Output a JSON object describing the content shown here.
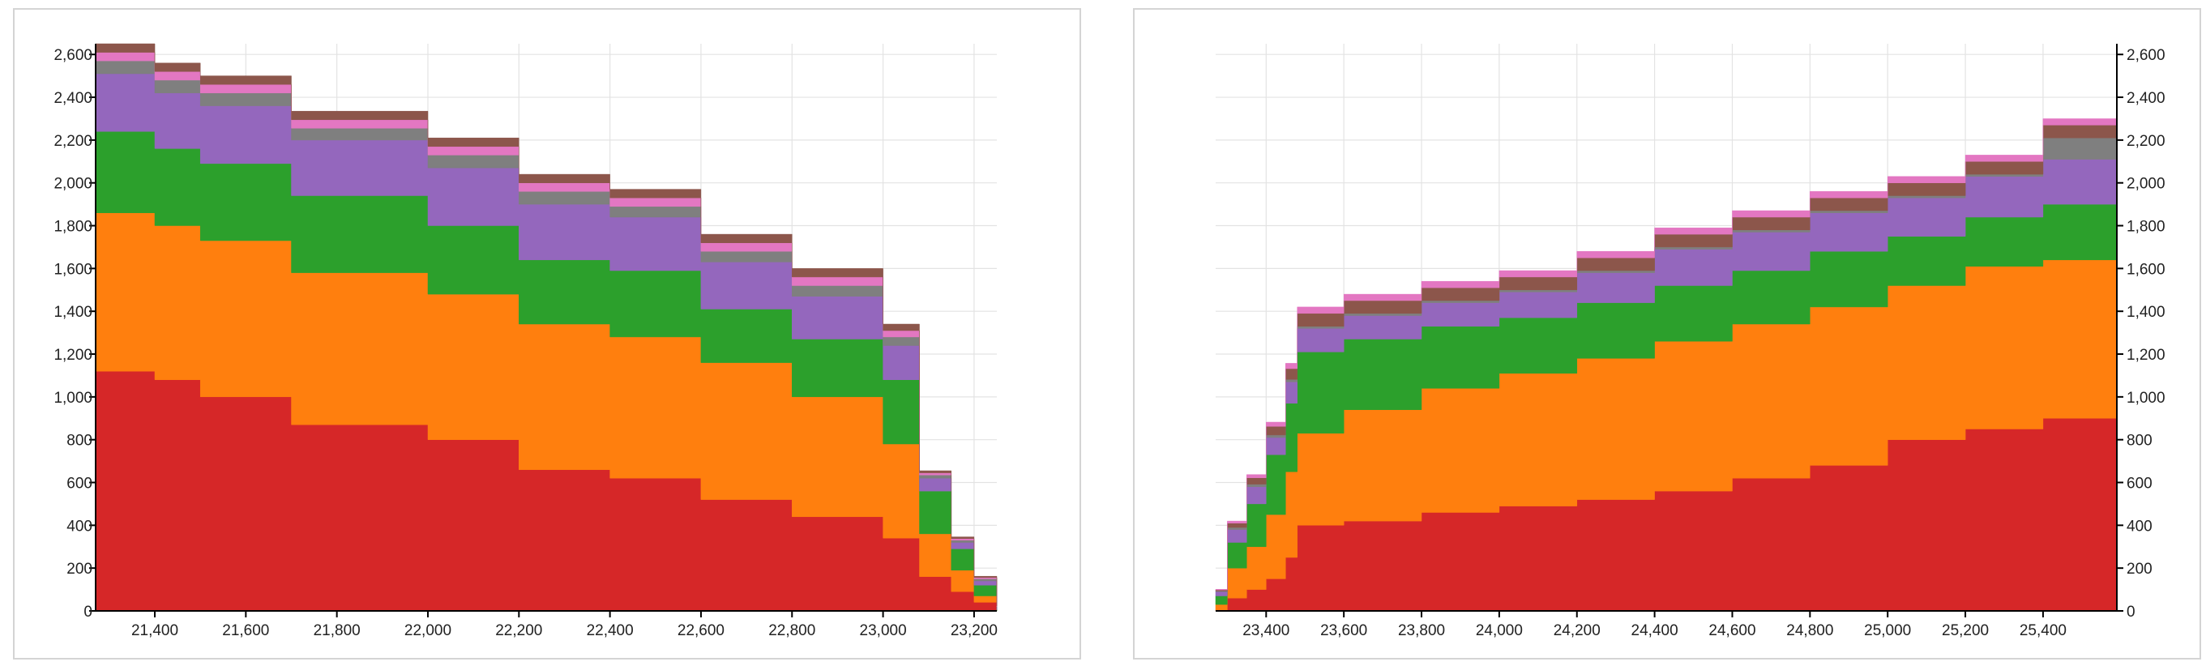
{
  "chart_data": [
    {
      "type": "area",
      "stacked": true,
      "step": true,
      "xlim": [
        21270,
        23250
      ],
      "ylim": [
        0,
        2650
      ],
      "y_axis_side": "left",
      "grid": true,
      "x_ticks": [
        "21,400",
        "21,600",
        "21,800",
        "22,000",
        "22,200",
        "22,400",
        "22,600",
        "22,800",
        "23,000",
        "23,200"
      ],
      "y_ticks": [
        "0",
        "200",
        "400",
        "600",
        "800",
        "1,000",
        "1,200",
        "1,400",
        "1,600",
        "1,800",
        "2,000",
        "2,200",
        "2,400",
        "2,600"
      ],
      "x": [
        21270,
        21400,
        21500,
        21700,
        22000,
        22200,
        22400,
        22600,
        22800,
        23000,
        23080,
        23150,
        23200,
        23250
      ],
      "series": [
        {
          "color": "#d62728",
          "values": [
            1120,
            1080,
            1000,
            870,
            800,
            660,
            620,
            520,
            440,
            340,
            160,
            90,
            40,
            0
          ]
        },
        {
          "color": "#ff7f0e",
          "values": [
            740,
            720,
            730,
            710,
            680,
            680,
            660,
            640,
            560,
            440,
            200,
            100,
            30,
            0
          ]
        },
        {
          "color": "#2ca02c",
          "values": [
            380,
            360,
            360,
            360,
            320,
            300,
            310,
            250,
            270,
            300,
            200,
            100,
            50,
            5
          ]
        },
        {
          "color": "#9467bd",
          "values": [
            270,
            260,
            270,
            260,
            270,
            260,
            250,
            220,
            200,
            160,
            60,
            30,
            20,
            10
          ]
        },
        {
          "color": "#7f7f7f",
          "values": [
            60,
            60,
            60,
            55,
            60,
            60,
            50,
            50,
            50,
            40,
            15,
            10,
            10,
            5
          ]
        },
        {
          "color": "#e377c2",
          "values": [
            40,
            40,
            40,
            40,
            40,
            40,
            40,
            40,
            40,
            30,
            10,
            8,
            6,
            3
          ]
        },
        {
          "color": "#8c564b",
          "values": [
            40,
            40,
            40,
            40,
            40,
            40,
            40,
            40,
            40,
            30,
            10,
            8,
            6,
            3
          ]
        }
      ]
    },
    {
      "type": "area",
      "stacked": true,
      "step": true,
      "xlim": [
        23270,
        25590
      ],
      "ylim": [
        0,
        2650
      ],
      "y_axis_side": "right",
      "grid": true,
      "x_ticks": [
        "23,400",
        "23,600",
        "23,800",
        "24,000",
        "24,200",
        "24,400",
        "24,600",
        "24,800",
        "25,000",
        "25,200",
        "25,400"
      ],
      "y_ticks": [
        "0",
        "200",
        "400",
        "600",
        "800",
        "1,000",
        "1,200",
        "1,400",
        "1,600",
        "1,800",
        "2,000",
        "2,200",
        "2,400",
        "2,600"
      ],
      "x": [
        23270,
        23300,
        23350,
        23400,
        23450,
        23480,
        23600,
        23800,
        24000,
        24200,
        24400,
        24600,
        24800,
        25000,
        25200,
        25400,
        25590
      ],
      "series": [
        {
          "color": "#d62728",
          "values": [
            0,
            60,
            100,
            150,
            250,
            400,
            420,
            460,
            490,
            520,
            560,
            620,
            680,
            800,
            850,
            900,
            950
          ]
        },
        {
          "color": "#ff7f0e",
          "values": [
            30,
            140,
            200,
            300,
            400,
            430,
            520,
            580,
            620,
            660,
            700,
            720,
            740,
            720,
            760,
            740,
            720
          ]
        },
        {
          "color": "#2ca02c",
          "values": [
            40,
            120,
            200,
            280,
            320,
            380,
            330,
            290,
            260,
            260,
            260,
            250,
            260,
            230,
            230,
            260,
            300
          ]
        },
        {
          "color": "#9467bd",
          "values": [
            20,
            60,
            80,
            80,
            100,
            110,
            110,
            110,
            120,
            140,
            170,
            180,
            180,
            180,
            190,
            210,
            240
          ]
        },
        {
          "color": "#7f7f7f",
          "values": [
            3,
            10,
            12,
            12,
            12,
            10,
            10,
            10,
            10,
            10,
            10,
            10,
            10,
            10,
            10,
            100,
            140
          ]
        },
        {
          "color": "#8c564b",
          "values": [
            5,
            20,
            30,
            40,
            50,
            60,
            60,
            60,
            60,
            60,
            60,
            60,
            60,
            60,
            60,
            60,
            60
          ]
        },
        {
          "color": "#e377c2",
          "values": [
            3,
            10,
            15,
            20,
            25,
            30,
            30,
            30,
            30,
            30,
            30,
            30,
            30,
            30,
            30,
            30,
            30
          ]
        }
      ]
    }
  ]
}
